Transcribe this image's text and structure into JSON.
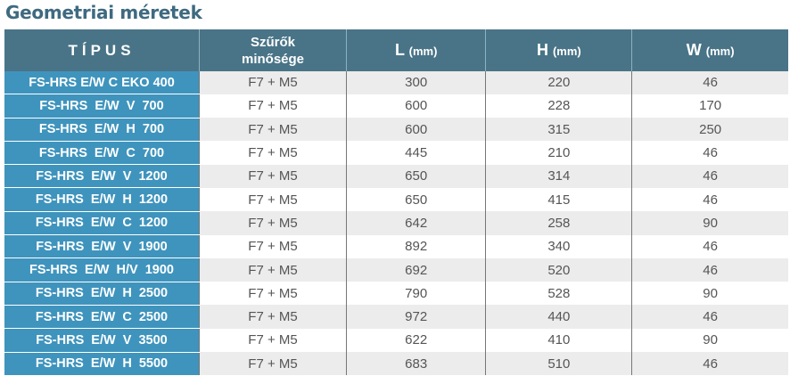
{
  "title": "Geometriai méretek",
  "headers": {
    "type": "TÍPUS",
    "filter_line1": "Szűrők",
    "filter_line2": "minősége",
    "L": "L",
    "H": "H",
    "W": "W",
    "unit": "(mm)"
  },
  "rows": [
    [
      "FS-HRS E/W C EKO 400",
      "F7 + M5",
      "300",
      "220",
      "46"
    ],
    [
      "FS-HRS  E/W  V  700",
      "F7 + M5",
      "600",
      "228",
      "170"
    ],
    [
      "FS-HRS  E/W  H  700",
      "F7 + M5",
      "600",
      "315",
      "250"
    ],
    [
      "FS-HRS  E/W  C  700",
      "F7 + M5",
      "445",
      "210",
      "46"
    ],
    [
      "FS-HRS  E/W  V  1200",
      "F7 + M5",
      "650",
      "314",
      "46"
    ],
    [
      "FS-HRS  E/W  H  1200",
      "F7 + M5",
      "650",
      "415",
      "46"
    ],
    [
      "FS-HRS  E/W  C  1200",
      "F7 + M5",
      "642",
      "258",
      "90"
    ],
    [
      "FS-HRS  E/W  V  1900",
      "F7 + M5",
      "892",
      "340",
      "46"
    ],
    [
      "FS-HRS  E/W  H/V  1900",
      "F7 + M5",
      "692",
      "520",
      "46"
    ],
    [
      "FS-HRS  E/W  H  2500",
      "F7 + M5",
      "790",
      "528",
      "90"
    ],
    [
      "FS-HRS  E/W  C  2500",
      "F7 + M5",
      "972",
      "440",
      "46"
    ],
    [
      "FS-HRS  E/W  V  3500",
      "F7 + M5",
      "622",
      "410",
      "90"
    ],
    [
      "FS-HRS  E/W  H  5500",
      "F7 + M5",
      "683",
      "510",
      "46"
    ]
  ]
}
